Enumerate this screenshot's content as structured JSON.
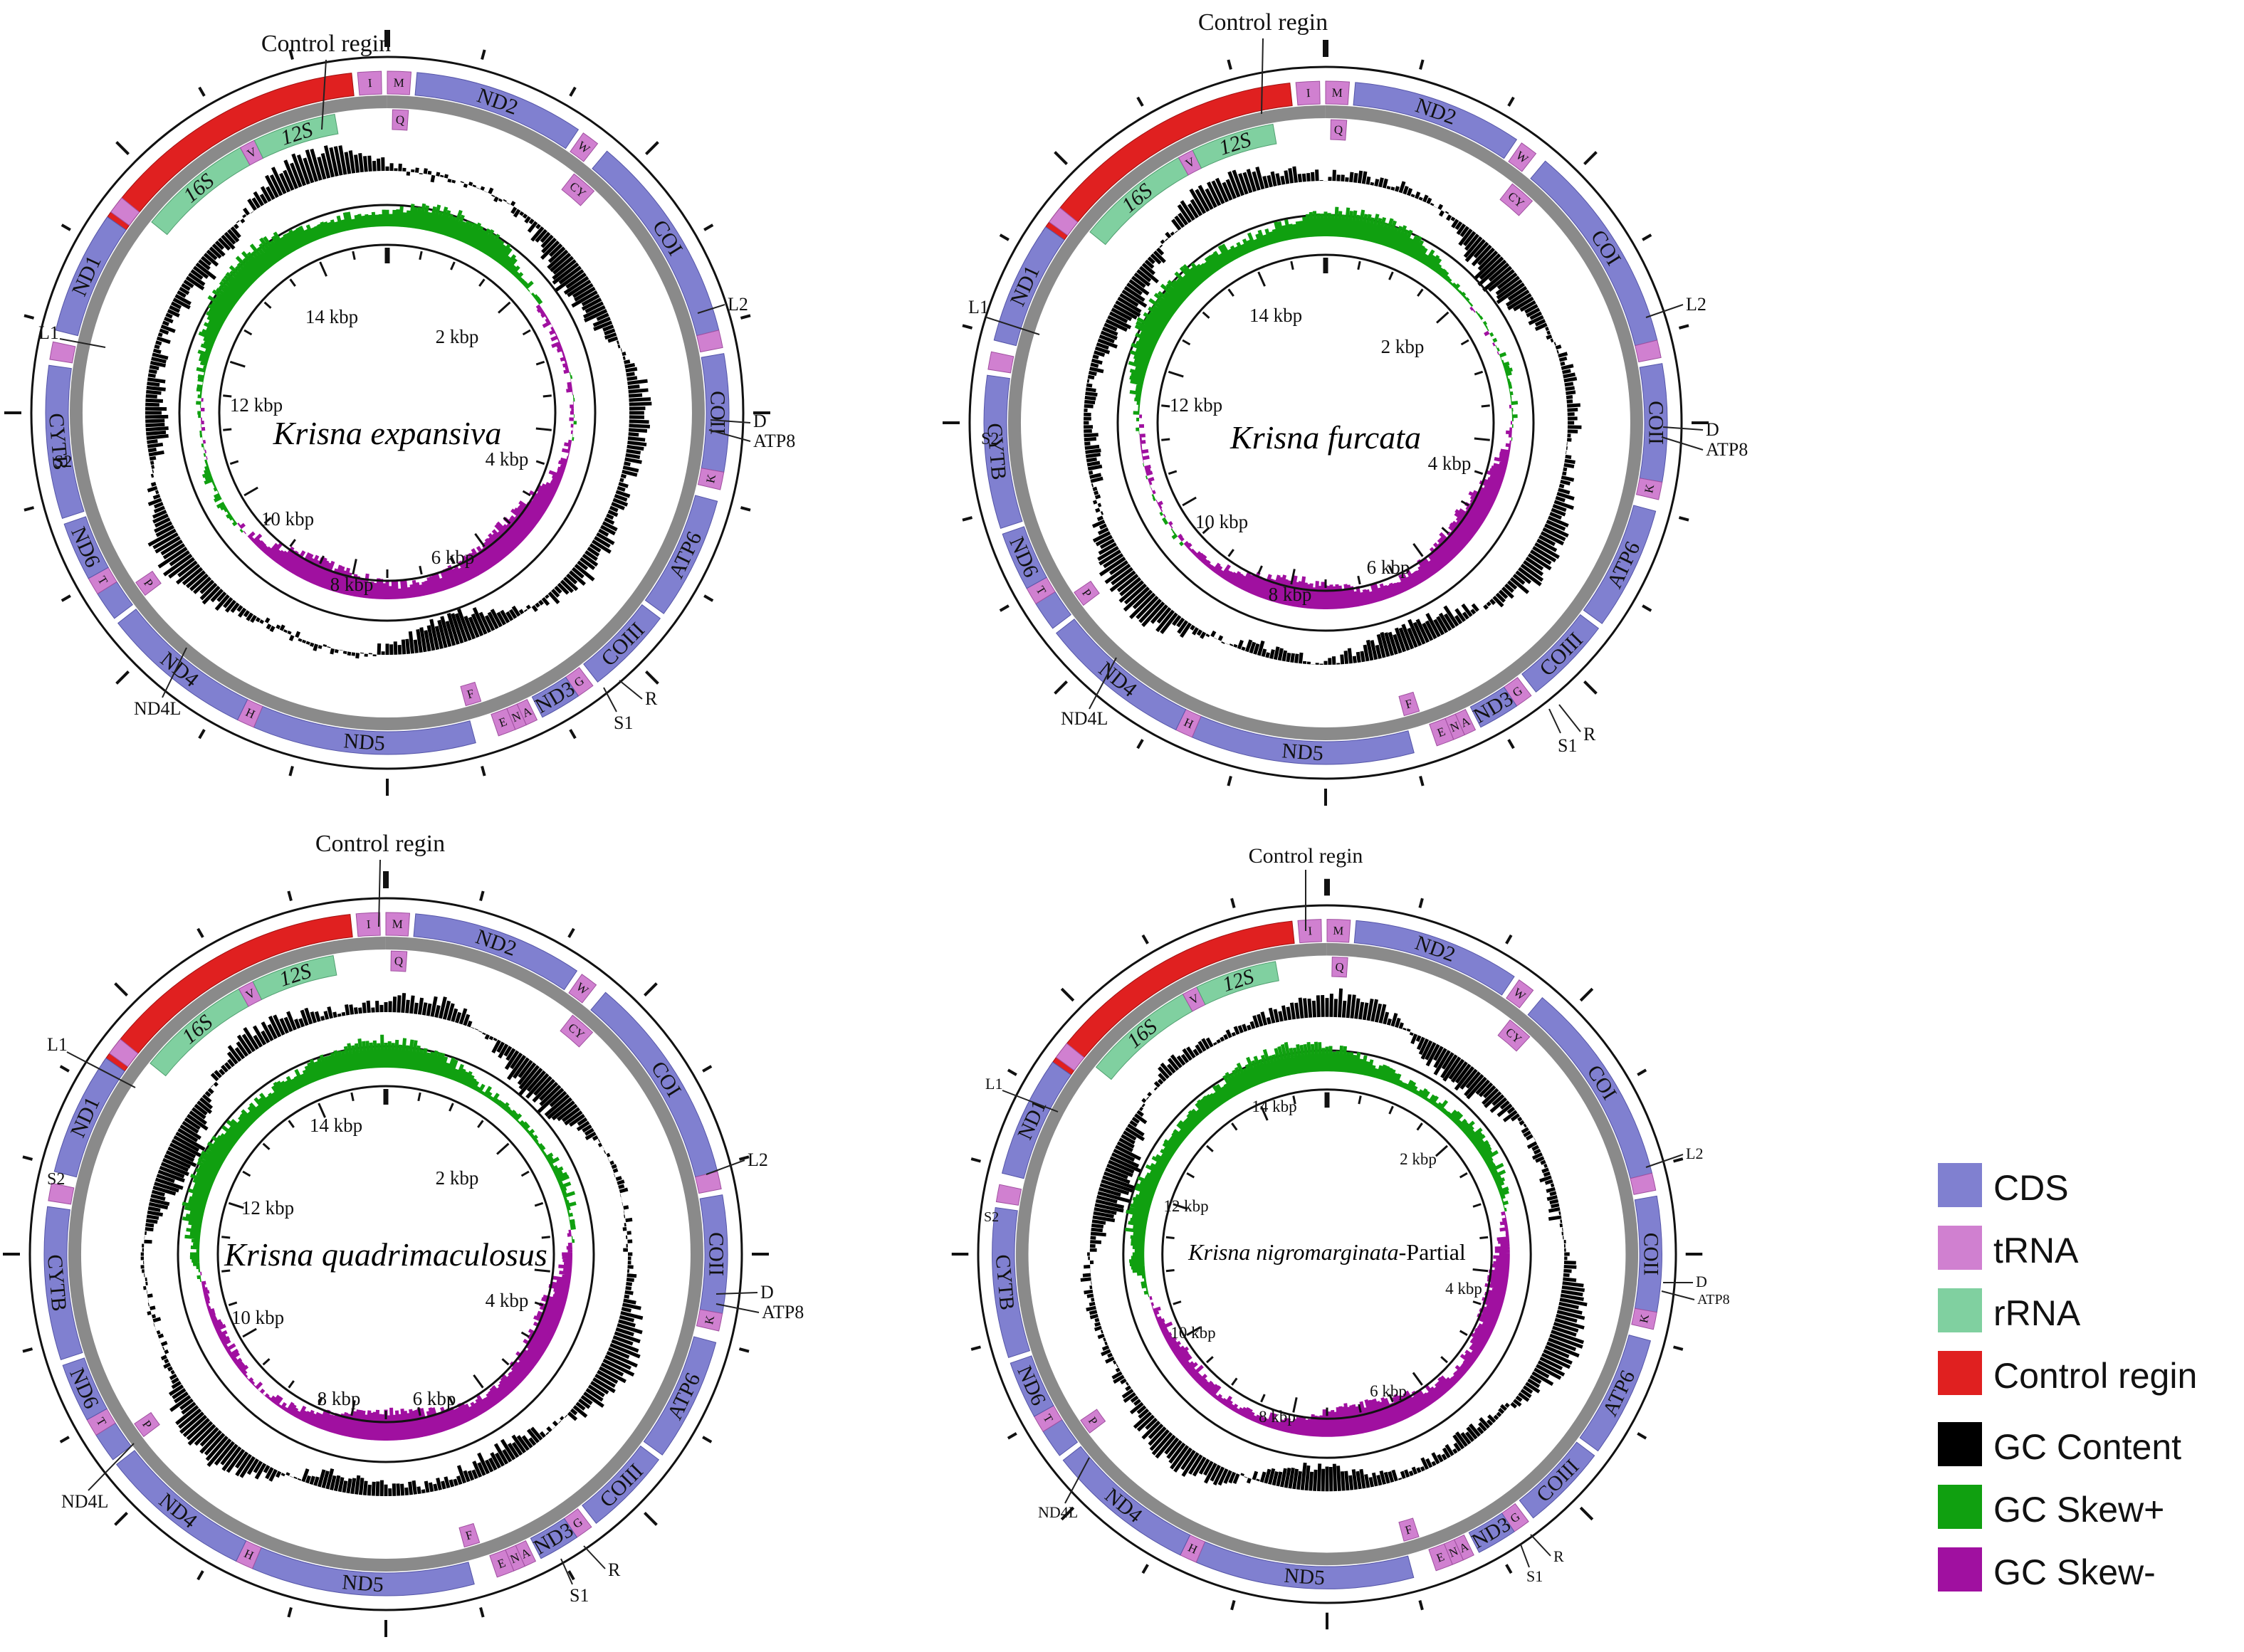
{
  "figure": {
    "control_label": "Control regin",
    "maps": [
      {
        "id": "expansiva",
        "name_italic": "Krisna expansiva",
        "name_suffix": "",
        "kbp_labels": [
          "2 kbp",
          "4 kbp",
          "6 kbp",
          "8 kbp",
          "10 kbp",
          "12 kbp",
          "14 kbp"
        ],
        "external_labels": [
          "Control regin",
          "L2",
          "D",
          "ATP8",
          "R",
          "S1",
          "ND4L",
          "L1",
          "S2"
        ]
      },
      {
        "id": "furcata",
        "name_italic": "Krisna furcata",
        "name_suffix": "",
        "kbp_labels": [
          "2 kbp",
          "4 kbp",
          "6 kbp",
          "8 kbp",
          "10 kbp",
          "12 kbp",
          "14 kbp"
        ],
        "external_labels": [
          "Control regin",
          "L2",
          "D",
          "ATP8",
          "R",
          "S1",
          "ND4L",
          "L1",
          "S2"
        ]
      },
      {
        "id": "quadrimaculosus",
        "name_italic": "Krisna quadrimaculosus",
        "name_suffix": "",
        "kbp_labels": [
          "2 kbp",
          "4 kbp",
          "6 kbp",
          "8 kbp",
          "10 kbp",
          "12 kbp",
          "14 kbp"
        ],
        "external_labels": [
          "Control regin",
          "L2",
          "D",
          "ATP8",
          "R",
          "S1",
          "ND4L",
          "L1",
          "S2"
        ]
      },
      {
        "id": "nigromarginata",
        "name_italic": "Krisna nigromarginata",
        "name_suffix": "-Partial",
        "kbp_labels": [
          "2 kbp",
          "4 kbp",
          "6 kbp",
          "8 kbp",
          "10 kbp",
          "12 kbp",
          "14 kbp"
        ],
        "external_labels": [
          "Control regin",
          "L2",
          "D",
          "ATP8",
          "R",
          "S1",
          "ND4L",
          "L1",
          "S2"
        ]
      }
    ],
    "features": [
      {
        "label": "Control regin",
        "type": "control",
        "strand": "outer",
        "start_deg": -56,
        "end_deg": -6,
        "show_label": false
      },
      {
        "label": "I",
        "type": "trna",
        "strand": "outer",
        "start_deg": -5,
        "end_deg": -1
      },
      {
        "label": "M",
        "type": "trna",
        "strand": "outer",
        "start_deg": 0,
        "end_deg": 4
      },
      {
        "label": "ND2",
        "type": "cds",
        "strand": "outer",
        "start_deg": 5,
        "end_deg": 34
      },
      {
        "label": "W",
        "type": "trna",
        "strand": "outer",
        "start_deg": 35,
        "end_deg": 38
      },
      {
        "label": "Q",
        "type": "trna",
        "strand": "inner",
        "start_deg": 1,
        "end_deg": 4
      },
      {
        "label": "CY",
        "type": "trna",
        "strand": "inner",
        "start_deg": 38,
        "end_deg": 43
      },
      {
        "label": "COI",
        "type": "cds",
        "strand": "outer",
        "start_deg": 40,
        "end_deg": 76
      },
      {
        "label": "L2",
        "type": "trna",
        "strand": "outer",
        "start_deg": 76,
        "end_deg": 79,
        "show_label": false
      },
      {
        "label": "COII",
        "type": "cds",
        "strand": "outer",
        "start_deg": 80,
        "end_deg": 100
      },
      {
        "label": "K",
        "type": "trna",
        "strand": "outer",
        "start_deg": 100,
        "end_deg": 103
      },
      {
        "label": "ATP6",
        "type": "cds",
        "strand": "outer",
        "start_deg": 105,
        "end_deg": 126
      },
      {
        "label": "COIII",
        "type": "cds",
        "strand": "outer",
        "start_deg": 127,
        "end_deg": 142
      },
      {
        "label": "G",
        "type": "trna",
        "strand": "outer",
        "start_deg": 143,
        "end_deg": 146
      },
      {
        "label": "ND3",
        "type": "cds",
        "strand": "outer",
        "start_deg": 146,
        "end_deg": 153
      },
      {
        "label": "A",
        "type": "trna",
        "strand": "outer",
        "start_deg": 154,
        "end_deg": 156
      },
      {
        "label": "N",
        "type": "trna",
        "strand": "outer",
        "start_deg": 156,
        "end_deg": 158
      },
      {
        "label": "E",
        "type": "trna",
        "strand": "outer",
        "start_deg": 158,
        "end_deg": 161
      },
      {
        "label": "F",
        "type": "trna",
        "strand": "inner",
        "start_deg": 162,
        "end_deg": 165
      },
      {
        "label": "ND5",
        "type": "cds",
        "strand": "outer",
        "start_deg": 165,
        "end_deg": 203
      },
      {
        "label": "H",
        "type": "trna",
        "strand": "outer",
        "start_deg": 203,
        "end_deg": 206
      },
      {
        "label": "ND4",
        "type": "cds",
        "strand": "outer",
        "start_deg": 206,
        "end_deg": 232
      },
      {
        "label": "P",
        "type": "trna",
        "strand": "inner",
        "start_deg": 233,
        "end_deg": 236
      },
      {
        "label": "ND4L",
        "type": "cds",
        "strand": "outer",
        "start_deg": 233,
        "end_deg": 238,
        "show_label": false
      },
      {
        "label": "T",
        "type": "trna",
        "strand": "outer",
        "start_deg": 238,
        "end_deg": 241
      },
      {
        "label": "ND6",
        "type": "cds",
        "strand": "outer",
        "start_deg": 241,
        "end_deg": 251
      },
      {
        "label": "CYTB",
        "type": "cds",
        "strand": "outer",
        "start_deg": 252,
        "end_deg": 278
      },
      {
        "label": "S2",
        "type": "trna",
        "strand": "outer",
        "start_deg": 279,
        "end_deg": 282,
        "show_label": false
      },
      {
        "label": "ND1",
        "type": "cds",
        "strand": "outer",
        "start_deg": 284,
        "end_deg": 305
      },
      {
        "label": "L1",
        "type": "trna",
        "strand": "outer",
        "start_deg": 306,
        "end_deg": 309,
        "show_label": false
      },
      {
        "label": "16S",
        "type": "rrna",
        "strand": "inner",
        "start_deg": 309,
        "end_deg": 331
      },
      {
        "label": "V",
        "type": "trna",
        "strand": "inner",
        "start_deg": 331,
        "end_deg": 334
      },
      {
        "label": "12S",
        "type": "rrna",
        "strand": "inner",
        "start_deg": 334,
        "end_deg": 350
      }
    ]
  },
  "legend": {
    "items": [
      {
        "label": "CDS",
        "color": "#8080d0"
      },
      {
        "label": "tRNA",
        "color": "#d080d0"
      },
      {
        "label": "rRNA",
        "color": "#80d0a0"
      },
      {
        "label": "Control regin",
        "color": "#e02020"
      },
      {
        "label": "GC Content",
        "color": "#000000"
      },
      {
        "label": "GC Skew+",
        "color": "#10a010"
      },
      {
        "label": "GC Skew-",
        "color": "#a010a0"
      }
    ]
  },
  "colors": {
    "cds": "#8080d0",
    "trna": "#d080d0",
    "rrna": "#80d0a0",
    "control": "#e02020",
    "gc_content": "#000000",
    "gc_skew_pos": "#10a010",
    "gc_skew_neg": "#a010a0",
    "backbone": "#8a8a8a"
  }
}
